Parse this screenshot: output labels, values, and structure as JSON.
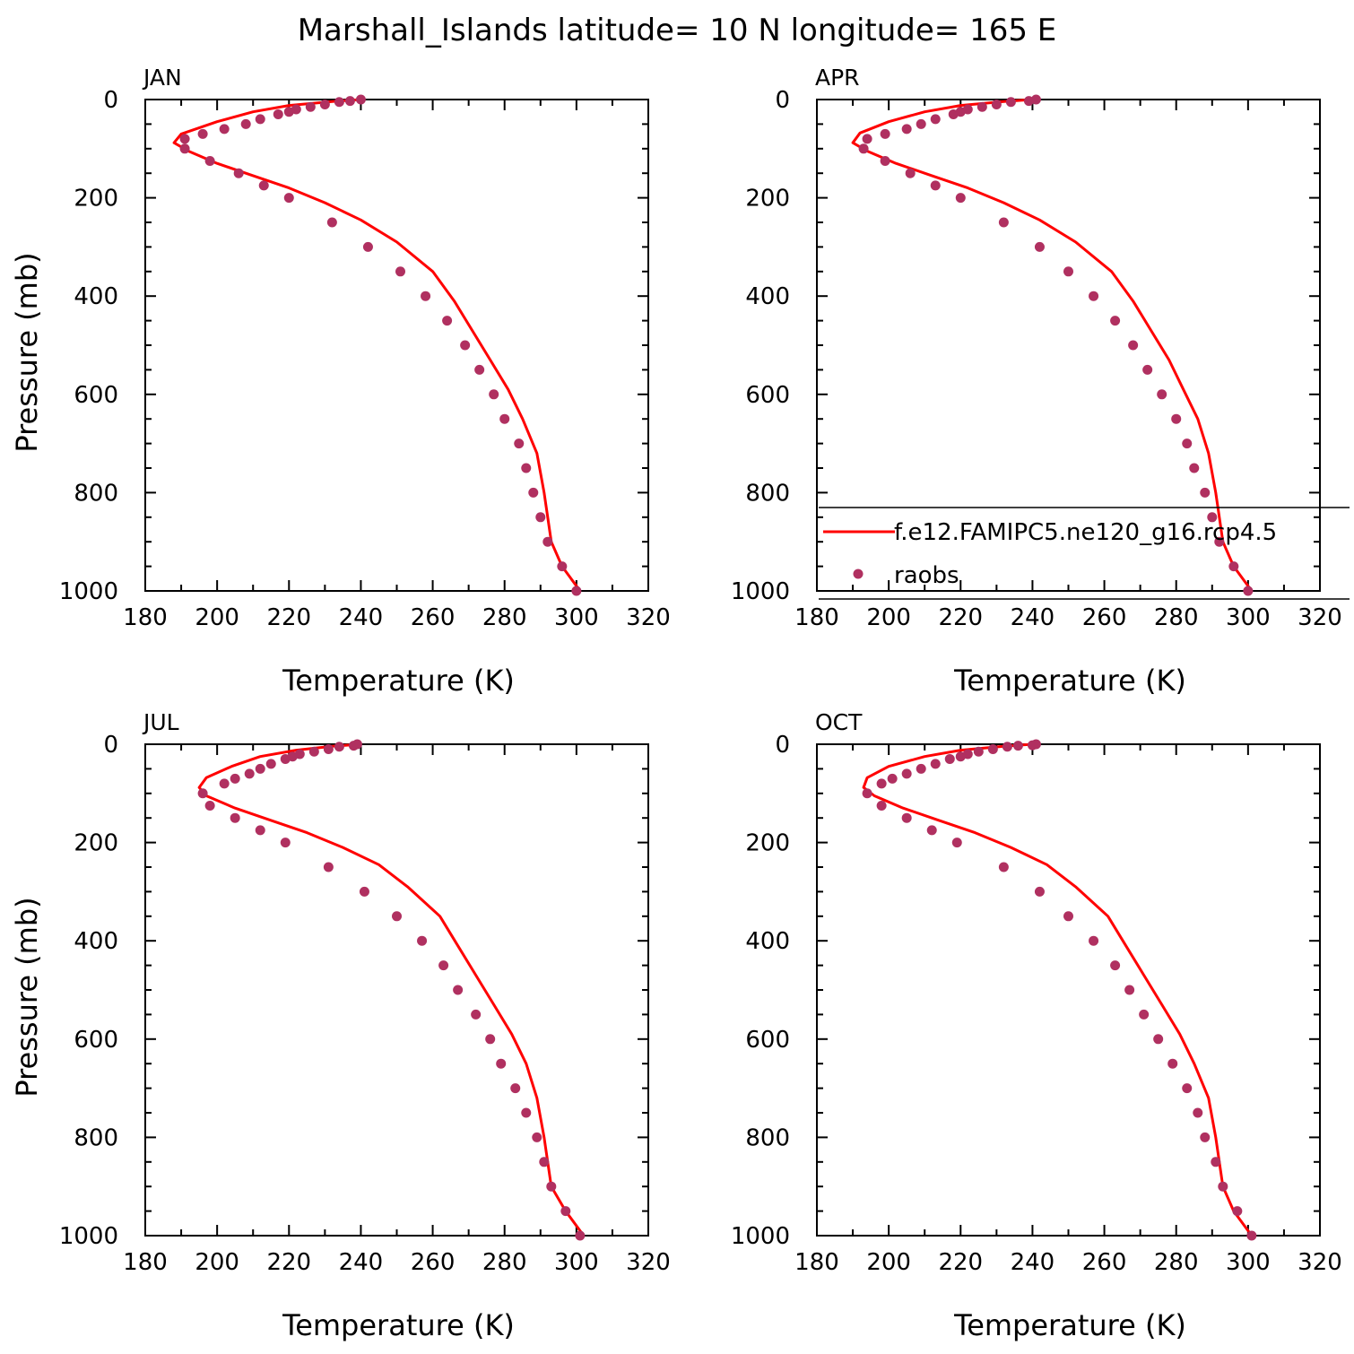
{
  "figure_title": "Marshall_Islands  latitude= 10 N longitude= 165 E",
  "chart_data": [
    {
      "type": "line",
      "panel": "JAN",
      "xlabel": "Temperature (K)",
      "ylabel": "Pressure (mb)",
      "xlim": [
        180,
        320
      ],
      "ylim": [
        1000,
        0
      ],
      "xticks": [
        180,
        200,
        220,
        240,
        260,
        280,
        300,
        320
      ],
      "yticks": [
        0,
        200,
        400,
        600,
        800,
        1000
      ],
      "series": [
        {
          "name": "f.e12.FAMIPC5.ne120_g16.rcp4.5",
          "style": "line",
          "color": "#ff0000",
          "x": [
            240,
            232,
            220,
            210,
            200,
            190,
            188,
            192,
            200,
            210,
            220,
            230,
            240,
            250,
            260,
            266,
            271,
            276,
            281,
            285,
            289,
            291,
            293,
            296,
            301
          ],
          "y": [
            0,
            4,
            12,
            25,
            45,
            70,
            88,
            105,
            130,
            155,
            180,
            210,
            245,
            290,
            350,
            410,
            470,
            530,
            590,
            650,
            720,
            800,
            900,
            950,
            1000
          ]
        },
        {
          "name": "raobs",
          "style": "markers",
          "color": "#b03060",
          "x": [
            240,
            237,
            234,
            230,
            226,
            222,
            220,
            217,
            212,
            208,
            202,
            196,
            191,
            191,
            198,
            206,
            213,
            220,
            232,
            242,
            251,
            258,
            264,
            269,
            273,
            277,
            280,
            284,
            286,
            288,
            290,
            292,
            296,
            300
          ],
          "y": [
            0,
            3,
            5,
            10,
            15,
            20,
            25,
            30,
            40,
            50,
            60,
            70,
            80,
            100,
            125,
            150,
            175,
            200,
            250,
            300,
            350,
            400,
            450,
            500,
            550,
            600,
            650,
            700,
            750,
            800,
            850,
            900,
            950,
            1000
          ]
        }
      ]
    },
    {
      "type": "line",
      "panel": "APR",
      "xlabel": "Temperature (K)",
      "ylabel": "",
      "xlim": [
        180,
        320
      ],
      "ylim": [
        1000,
        0
      ],
      "xticks": [
        180,
        200,
        220,
        240,
        260,
        280,
        300,
        320
      ],
      "yticks": [
        0,
        200,
        400,
        600,
        800,
        1000
      ],
      "legend_location": "bottom-right",
      "series": [
        {
          "name": "f.e12.FAMIPC5.ne120_g16.rcp4.5",
          "style": "line",
          "color": "#ff0000",
          "x": [
            240,
            232,
            220,
            210,
            200,
            192,
            190,
            194,
            202,
            212,
            222,
            232,
            242,
            252,
            262,
            268,
            273,
            278,
            282,
            286,
            289,
            291,
            293,
            296,
            301
          ],
          "y": [
            0,
            4,
            12,
            25,
            45,
            68,
            88,
            105,
            130,
            155,
            180,
            210,
            245,
            290,
            350,
            410,
            470,
            530,
            590,
            650,
            720,
            800,
            900,
            950,
            1000
          ]
        },
        {
          "name": "raobs",
          "style": "markers",
          "color": "#b03060",
          "x": [
            241,
            239,
            234,
            230,
            226,
            222,
            220,
            218,
            213,
            209,
            205,
            199,
            194,
            193,
            199,
            206,
            213,
            220,
            232,
            242,
            250,
            257,
            263,
            268,
            272,
            276,
            280,
            283,
            285,
            288,
            290,
            292,
            296,
            300
          ],
          "y": [
            0,
            3,
            5,
            10,
            15,
            20,
            25,
            30,
            40,
            50,
            60,
            70,
            80,
            100,
            125,
            150,
            175,
            200,
            250,
            300,
            350,
            400,
            450,
            500,
            550,
            600,
            650,
            700,
            750,
            800,
            850,
            900,
            950,
            1000
          ]
        }
      ]
    },
    {
      "type": "line",
      "panel": "JUL",
      "xlabel": "Temperature (K)",
      "ylabel": "Pressure (mb)",
      "xlim": [
        180,
        320
      ],
      "ylim": [
        1000,
        0
      ],
      "xticks": [
        180,
        200,
        220,
        240,
        260,
        280,
        300,
        320
      ],
      "yticks": [
        0,
        200,
        400,
        600,
        800,
        1000
      ],
      "series": [
        {
          "name": "f.e12.FAMIPC5.ne120_g16.rcp4.5",
          "style": "line",
          "color": "#ff0000",
          "x": [
            240,
            232,
            222,
            212,
            204,
            197,
            195,
            197,
            205,
            215,
            225,
            235,
            245,
            253,
            262,
            267,
            272,
            277,
            282,
            286,
            289,
            291,
            293,
            297,
            302
          ],
          "y": [
            0,
            4,
            12,
            25,
            45,
            68,
            88,
            105,
            130,
            155,
            180,
            210,
            245,
            290,
            350,
            410,
            470,
            530,
            590,
            650,
            720,
            800,
            900,
            950,
            1000
          ]
        },
        {
          "name": "raobs",
          "style": "markers",
          "color": "#b03060",
          "x": [
            239,
            238,
            234,
            231,
            227,
            223,
            221,
            219,
            215,
            212,
            209,
            205,
            202,
            196,
            198,
            205,
            212,
            219,
            231,
            241,
            250,
            257,
            263,
            267,
            272,
            276,
            279,
            283,
            286,
            289,
            291,
            293,
            297,
            301
          ],
          "y": [
            0,
            3,
            5,
            10,
            15,
            20,
            25,
            30,
            40,
            50,
            60,
            70,
            80,
            100,
            125,
            150,
            175,
            200,
            250,
            300,
            350,
            400,
            450,
            500,
            550,
            600,
            650,
            700,
            750,
            800,
            850,
            900,
            950,
            1000
          ]
        }
      ]
    },
    {
      "type": "line",
      "panel": "OCT",
      "xlabel": "Temperature (K)",
      "ylabel": "",
      "xlim": [
        180,
        320
      ],
      "ylim": [
        1000,
        0
      ],
      "xticks": [
        180,
        200,
        220,
        240,
        260,
        280,
        300,
        320
      ],
      "yticks": [
        0,
        200,
        400,
        600,
        800,
        1000
      ],
      "series": [
        {
          "name": "f.e12.FAMIPC5.ne120_g16.rcp4.5",
          "style": "line",
          "color": "#ff0000",
          "x": [
            240,
            232,
            220,
            210,
            200,
            194,
            193,
            196,
            204,
            214,
            224,
            234,
            244,
            252,
            261,
            266,
            271,
            276,
            281,
            285,
            289,
            291,
            293,
            296,
            301
          ],
          "y": [
            0,
            4,
            12,
            25,
            45,
            68,
            88,
            105,
            130,
            155,
            180,
            210,
            245,
            290,
            350,
            410,
            470,
            530,
            590,
            650,
            720,
            800,
            900,
            950,
            1000
          ]
        },
        {
          "name": "raobs",
          "style": "markers",
          "color": "#b03060",
          "x": [
            241,
            240,
            236,
            233,
            229,
            225,
            222,
            220,
            217,
            213,
            209,
            205,
            201,
            198,
            194,
            198,
            205,
            212,
            219,
            232,
            242,
            250,
            257,
            263,
            267,
            271,
            275,
            279,
            283,
            286,
            288,
            291,
            293,
            297,
            301
          ],
          "y": [
            0,
            2,
            3,
            5,
            10,
            15,
            20,
            25,
            30,
            40,
            50,
            60,
            70,
            80,
            100,
            125,
            150,
            175,
            200,
            250,
            300,
            350,
            400,
            450,
            500,
            550,
            600,
            650,
            700,
            750,
            800,
            850,
            900,
            950,
            1000
          ]
        }
      ]
    }
  ]
}
